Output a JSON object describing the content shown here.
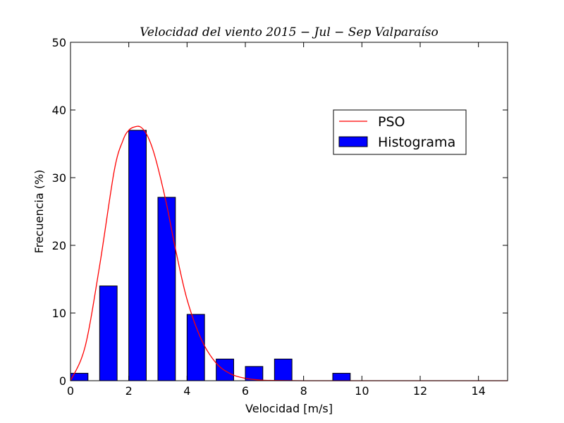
{
  "chart_data": {
    "type": "bar",
    "title": "Velocidad del viento 2015 − Jul − Sep Valparaíso",
    "xlabel": "Velocidad [m/s]",
    "ylabel": "Frecuencia (%)",
    "xlim": [
      0,
      15
    ],
    "ylim": [
      0,
      50
    ],
    "xticks": [
      0,
      2,
      4,
      6,
      8,
      10,
      12,
      14
    ],
    "yticks": [
      0,
      10,
      20,
      30,
      40,
      50
    ],
    "grid": false,
    "legend_position": "upper-right",
    "bar_width": 0.6,
    "series": [
      {
        "name": "Histograma",
        "kind": "bar",
        "color": "#0000ff",
        "x": [
          0,
          1,
          2,
          3,
          4,
          5,
          6,
          7,
          9
        ],
        "values": [
          1.1,
          14.0,
          37.0,
          27.1,
          9.8,
          3.2,
          2.1,
          3.2,
          1.1
        ]
      },
      {
        "name": "PSO",
        "kind": "line",
        "color": "#ff0000",
        "x": [
          0,
          0.5,
          1.0,
          1.5,
          1.8,
          2.0,
          2.2,
          2.4,
          2.6,
          2.8,
          3.0,
          3.3,
          3.6,
          4.0,
          4.5,
          5.0,
          5.5,
          6.0,
          6.5,
          7.0,
          8.0,
          10.0,
          15.0
        ],
        "values": [
          0,
          5.0,
          17.0,
          31.0,
          35.5,
          37.0,
          37.5,
          37.5,
          36.5,
          34.5,
          31.5,
          26.0,
          19.5,
          12.0,
          6.0,
          2.6,
          1.0,
          0.35,
          0.1,
          0.03,
          0,
          0,
          0
        ]
      }
    ]
  }
}
